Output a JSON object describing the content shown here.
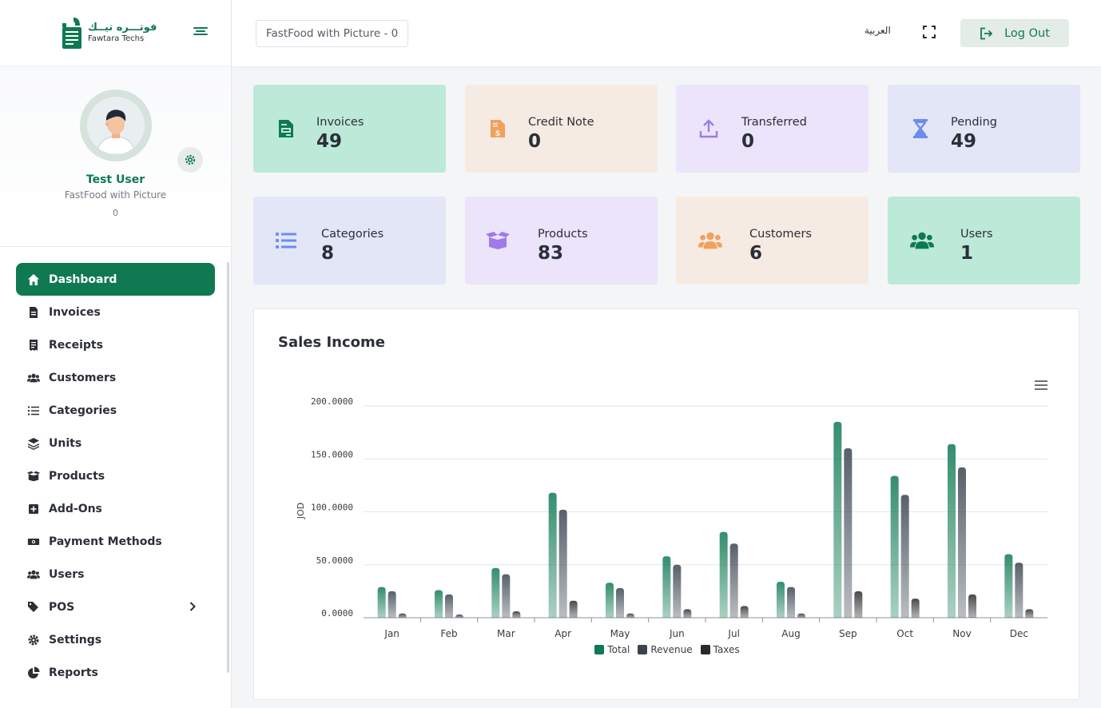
{
  "brand": {
    "logo_ar": "فوتـــره تيــك",
    "logo_en": "Fawtara Techs"
  },
  "profile": {
    "name": "Test User",
    "company": "FastFood with Picture",
    "branch": "0"
  },
  "menu": [
    {
      "label": "Dashboard",
      "icon": "home-icon",
      "active": true
    },
    {
      "label": "Invoices",
      "icon": "file-icon"
    },
    {
      "label": "Receipts",
      "icon": "receipt-icon"
    },
    {
      "label": "Customers",
      "icon": "users-icon"
    },
    {
      "label": "Categories",
      "icon": "list-icon"
    },
    {
      "label": "Units",
      "icon": "layers-icon"
    },
    {
      "label": "Products",
      "icon": "box-icon"
    },
    {
      "label": "Add-Ons",
      "icon": "plus-square-icon"
    },
    {
      "label": "Payment Methods",
      "icon": "money-icon"
    },
    {
      "label": "Users",
      "icon": "users-icon"
    },
    {
      "label": "POS",
      "icon": "tags-icon",
      "expandable": true
    },
    {
      "label": "Settings",
      "icon": "gear-icon"
    },
    {
      "label": "Reports",
      "icon": "pie-icon"
    }
  ],
  "header": {
    "company_select": "FastFood with Picture - 0",
    "language": "العربية",
    "logout": "Log Out"
  },
  "cards": [
    {
      "label": "Invoices",
      "value": "49",
      "icon": "invoice-icon",
      "bg": "#bde9d9",
      "color": "#0f7a52"
    },
    {
      "label": "Credit Note",
      "value": "0",
      "icon": "dollar-file-icon",
      "bg": "#f6ebe2",
      "color": "#f0a15e"
    },
    {
      "label": "Transferred",
      "value": "0",
      "icon": "upload-icon",
      "bg": "#ebe4fb",
      "color": "#9d7be8"
    },
    {
      "label": "Pending",
      "value": "49",
      "icon": "hourglass-icon",
      "bg": "#e2e6f7",
      "color": "#6b8cf0"
    },
    {
      "label": "Categories",
      "value": "8",
      "icon": "list-icon",
      "bg": "#e2e6f7",
      "color": "#6b8cf0"
    },
    {
      "label": "Products",
      "value": "83",
      "icon": "box-open-icon",
      "bg": "#ebe4fb",
      "color": "#9d7be8"
    },
    {
      "label": "Customers",
      "value": "6",
      "icon": "users-icon",
      "bg": "#f6ebe2",
      "color": "#f0a15e"
    },
    {
      "label": "Users",
      "value": "1",
      "icon": "users-icon",
      "bg": "#bde9d9",
      "color": "#0f7a52"
    }
  ],
  "chart_title": "Sales Income",
  "chart_data": {
    "type": "bar",
    "title": "Sales Income",
    "xlabel": "",
    "ylabel": "JOD",
    "ylim": [
      0,
      200
    ],
    "ytick_labels": [
      "0.0000",
      "50.0000",
      "100.0000",
      "150.0000",
      "200.0000"
    ],
    "categories": [
      "Jan",
      "Feb",
      "Mar",
      "Apr",
      "May",
      "Jun",
      "Jul",
      "Aug",
      "Sep",
      "Oct",
      "Nov",
      "Dec"
    ],
    "series": [
      {
        "name": "Total",
        "color": "#0f7a52",
        "values": [
          29,
          26,
          47,
          118,
          33,
          58,
          81,
          34,
          185,
          134,
          164,
          60
        ]
      },
      {
        "name": "Revenue",
        "color": "#3a4450",
        "values": [
          25,
          22,
          41,
          102,
          28,
          50,
          70,
          29,
          160,
          116,
          142,
          52
        ]
      },
      {
        "name": "Taxes",
        "color": "#2a2a2a",
        "values": [
          4,
          3,
          6,
          16,
          4,
          8,
          11,
          4,
          25,
          18,
          22,
          8
        ]
      }
    ],
    "legend_position": "bottom-center",
    "grid": true
  }
}
